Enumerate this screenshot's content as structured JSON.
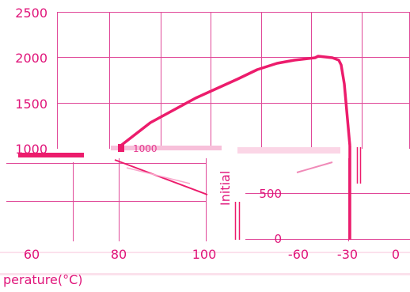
{
  "chart_data": [
    {
      "type": "line",
      "title": "",
      "xlabel": "",
      "ylabel": "",
      "grid": true,
      "y_ticks": [
        "2500",
        "2000",
        "1500",
        "1000"
      ],
      "ylim": [
        0,
        2500
      ],
      "series": [
        {
          "name": "",
          "color": "#ec1c6c",
          "points": [
            [
              80,
              1000
            ],
            [
              95,
              1420
            ],
            [
              105,
              1600
            ],
            [
              115,
              1790
            ],
            [
              125,
              1930
            ],
            [
              135,
              1980
            ],
            [
              140,
              2000
            ],
            [
              148,
              2020
            ],
            [
              152,
              2000
            ],
            [
              156,
              1950
            ],
            [
              158,
              1850
            ],
            [
              160,
              1500
            ],
            [
              161,
              1000
            ]
          ]
        }
      ]
    },
    {
      "type": "line",
      "title": "",
      "xlabel": "perature(°C)",
      "ylabel": "Initial",
      "grid": true,
      "x_ticks_left": [
        "60",
        "80",
        "100"
      ],
      "x_ticks_right": [
        "-60",
        "-30",
        "0"
      ],
      "y_ticks": [
        "500",
        "0"
      ],
      "partial_label": "1000",
      "series": [
        {
          "name": "",
          "color": "#ec1c6c",
          "points": [
            [
              -25,
              1000
            ],
            [
              -25,
              0
            ]
          ]
        }
      ]
    }
  ],
  "colors": {
    "grid": "#e04898",
    "line": "#ec1c6c",
    "text": "#e0157a",
    "background": "#ffffff"
  }
}
